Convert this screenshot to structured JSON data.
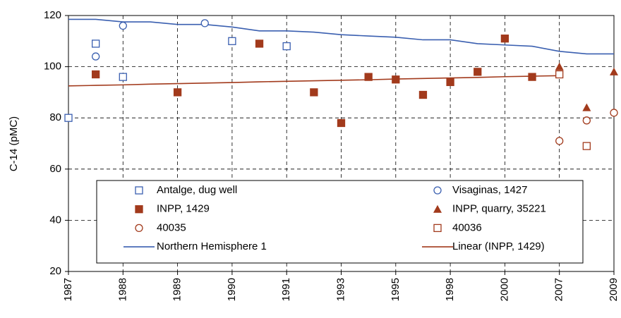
{
  "chart_data": {
    "type": "scatter",
    "ylabel": "C-14 (pMC)",
    "categories": [
      "1987",
      null,
      "1988",
      null,
      "1989",
      null,
      "1990",
      null,
      "1991",
      null,
      "1993",
      null,
      "1995",
      null,
      "1998",
      null,
      "2000",
      null,
      "2007",
      null,
      "2009"
    ],
    "ylim": [
      20,
      120
    ],
    "yticks": [
      20,
      40,
      60,
      80,
      100,
      120
    ],
    "grid": true,
    "series": [
      {
        "name": "Antalge, dug well",
        "color": "#3a5fb0",
        "marker": "square-open",
        "values": [
          80,
          109,
          96,
          null,
          null,
          null,
          110,
          null,
          108,
          null,
          null,
          null,
          null,
          null,
          null,
          null,
          null,
          null,
          null,
          null,
          null
        ]
      },
      {
        "name": "Visaginas, 1427",
        "color": "#3a5fb0",
        "marker": "circle-open",
        "values": [
          null,
          104,
          116,
          null,
          null,
          117,
          null,
          null,
          null,
          null,
          null,
          null,
          null,
          null,
          null,
          null,
          null,
          null,
          null,
          null,
          null
        ]
      },
      {
        "name": "INPP, 1429",
        "color": "#a23a1c",
        "marker": "square",
        "values": [
          null,
          97,
          null,
          null,
          90,
          null,
          null,
          109,
          null,
          90,
          78,
          96,
          95,
          89,
          94,
          98,
          111,
          96,
          null,
          null,
          null
        ]
      },
      {
        "name": "INPP, quarry, 35221",
        "color": "#a23a1c",
        "marker": "triangle",
        "values": [
          null,
          null,
          null,
          null,
          null,
          null,
          null,
          null,
          null,
          null,
          null,
          null,
          null,
          null,
          null,
          null,
          null,
          null,
          100,
          84,
          98
        ]
      },
      {
        "name": "40035",
        "color": "#a23a1c",
        "marker": "circle-open",
        "values": [
          null,
          null,
          null,
          null,
          null,
          null,
          null,
          null,
          null,
          null,
          null,
          null,
          null,
          null,
          null,
          null,
          null,
          null,
          71,
          79,
          82
        ]
      },
      {
        "name": "40036",
        "color": "#a23a1c",
        "marker": "square-open",
        "values": [
          null,
          null,
          null,
          null,
          null,
          null,
          null,
          null,
          null,
          null,
          null,
          null,
          null,
          null,
          null,
          null,
          null,
          null,
          97,
          69,
          null
        ]
      },
      {
        "name": "Northern Hemisphere 1",
        "color": "#3a5fb0",
        "marker": "line",
        "values": [
          118.5,
          118.5,
          117.5,
          117.5,
          116.5,
          116.5,
          115.5,
          114,
          114,
          113.5,
          112.5,
          112,
          111.5,
          110.5,
          110.5,
          109,
          108.5,
          108,
          106,
          105,
          105
        ]
      },
      {
        "name": "Linear (INPP, 1429)",
        "color": "#a23a1c",
        "marker": "line",
        "values": [
          92.5,
          92.7,
          92.9,
          93.2,
          93.4,
          93.6,
          93.8,
          94.1,
          94.3,
          94.5,
          94.7,
          94.9,
          95.2,
          95.4,
          95.6,
          95.8,
          96.1,
          96.3,
          96.5,
          null,
          null
        ]
      }
    ]
  }
}
